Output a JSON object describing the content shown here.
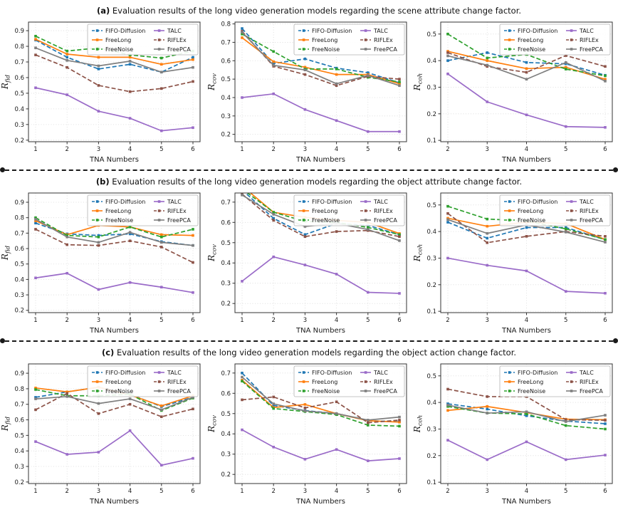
{
  "figure": {
    "xlabel": "TNA Numbers",
    "sections": [
      {
        "label": "(a)",
        "title": "Evaluation results of the long video generation models regarding the scene attribute change factor."
      },
      {
        "label": "(b)",
        "title": "Evaluation results of the long video generation models regarding the object attribute change factor."
      },
      {
        "label": "(c)",
        "title": "Evaluation results of the long video generation models regarding the object action change factor."
      }
    ],
    "legend_order": [
      "FIFO-Diffusion",
      "FreeLong",
      "FreeNoise",
      "TALC",
      "RIFLEx",
      "FreePCA"
    ],
    "series_styles": {
      "FIFO-Diffusion": {
        "color": "#1f77b4",
        "dashed": true
      },
      "FreeLong": {
        "color": "#ff7f0e",
        "dashed": false
      },
      "FreeNoise": {
        "color": "#2ca02c",
        "dashed": true
      },
      "TALC": {
        "color": "#9a6bc8",
        "dashed": false
      },
      "RIFLEx": {
        "color": "#8c5247",
        "dashed": true
      },
      "FreePCA": {
        "color": "#7f7f7f",
        "dashed": false
      }
    }
  },
  "chart_data": [
    {
      "type": "line",
      "section": "a",
      "ylabel_main": "R",
      "ylabel_sub": "fid",
      "xlabel": "TNA Numbers",
      "x": [
        1,
        2,
        3,
        4,
        5,
        6
      ],
      "yticks": [
        0.2,
        0.3,
        0.4,
        0.5,
        0.6,
        0.7,
        0.8,
        0.9
      ],
      "ylim": [
        0.19,
        0.955
      ],
      "grid": true,
      "legend_position": "upper right",
      "series": [
        {
          "name": "FIFO-Diffusion",
          "values": [
            0.84,
            0.73,
            0.655,
            0.685,
            0.635,
            0.73
          ]
        },
        {
          "name": "FreeLong",
          "values": [
            0.845,
            0.75,
            0.73,
            0.73,
            0.685,
            0.715
          ]
        },
        {
          "name": "FreeNoise",
          "values": [
            0.865,
            0.77,
            0.79,
            0.745,
            0.725,
            0.77
          ]
        },
        {
          "name": "TALC",
          "values": [
            0.535,
            0.49,
            0.385,
            0.34,
            0.26,
            0.28
          ]
        },
        {
          "name": "RIFLEx",
          "values": [
            0.745,
            0.665,
            0.55,
            0.51,
            0.53,
            0.575
          ]
        },
        {
          "name": "FreePCA",
          "values": [
            0.79,
            0.71,
            0.675,
            0.705,
            0.635,
            0.665
          ]
        }
      ]
    },
    {
      "type": "line",
      "section": "a",
      "ylabel_main": "R",
      "ylabel_sub": "cov",
      "xlabel": "TNA Numbers",
      "x": [
        1,
        2,
        3,
        4,
        5,
        6
      ],
      "yticks": [
        0.2,
        0.3,
        0.4,
        0.5,
        0.6,
        0.7,
        0.8
      ],
      "ylim": [
        0.16,
        0.81
      ],
      "grid": true,
      "legend_position": "upper right",
      "series": [
        {
          "name": "FIFO-Diffusion",
          "values": [
            0.775,
            0.585,
            0.61,
            0.56,
            0.535,
            0.48
          ]
        },
        {
          "name": "FreeLong",
          "values": [
            0.725,
            0.595,
            0.565,
            0.525,
            0.525,
            0.475
          ]
        },
        {
          "name": "FreeNoise",
          "values": [
            0.745,
            0.65,
            0.555,
            0.555,
            0.51,
            0.485
          ]
        },
        {
          "name": "TALC",
          "values": [
            0.4,
            0.42,
            0.335,
            0.275,
            0.215,
            0.215
          ]
        },
        {
          "name": "RIFLEx",
          "values": [
            0.76,
            0.57,
            0.525,
            0.465,
            0.515,
            0.5
          ]
        },
        {
          "name": "FreePCA",
          "values": [
            0.755,
            0.575,
            0.55,
            0.475,
            0.52,
            0.465
          ]
        }
      ]
    },
    {
      "type": "line",
      "section": "a",
      "ylabel_main": "R",
      "ylabel_sub": "coh",
      "xlabel": "TNA Numbers",
      "x": [
        2,
        3,
        4,
        5,
        6
      ],
      "yticks": [
        0.1,
        0.2,
        0.3,
        0.4,
        0.5
      ],
      "ylim": [
        0.095,
        0.545
      ],
      "grid": true,
      "legend_position": "upper right",
      "series": [
        {
          "name": "FIFO-Diffusion",
          "values": [
            0.4,
            0.43,
            0.393,
            0.388,
            0.345
          ]
        },
        {
          "name": "FreeLong",
          "values": [
            0.435,
            0.4,
            0.37,
            0.375,
            0.33
          ]
        },
        {
          "name": "FreeNoise",
          "values": [
            0.5,
            0.41,
            0.423,
            0.368,
            0.343
          ]
        },
        {
          "name": "TALC",
          "values": [
            0.35,
            0.245,
            0.196,
            0.152,
            0.149
          ]
        },
        {
          "name": "RIFLEx",
          "values": [
            0.43,
            0.378,
            0.356,
            0.419,
            0.378
          ]
        },
        {
          "name": "FreePCA",
          "values": [
            0.418,
            0.383,
            0.33,
            0.393,
            0.323
          ]
        }
      ]
    },
    {
      "type": "line",
      "section": "b",
      "ylabel_main": "R",
      "ylabel_sub": "fid",
      "xlabel": "TNA Numbers",
      "x": [
        1,
        2,
        3,
        4,
        5,
        6
      ],
      "yticks": [
        0.2,
        0.3,
        0.4,
        0.5,
        0.6,
        0.7,
        0.8,
        0.9
      ],
      "ylim": [
        0.185,
        0.96
      ],
      "grid": true,
      "legend_position": "upper right",
      "series": [
        {
          "name": "FIFO-Diffusion",
          "values": [
            0.765,
            0.695,
            0.685,
            0.695,
            0.645,
            0.62
          ]
        },
        {
          "name": "FreeLong",
          "values": [
            0.78,
            0.69,
            0.75,
            0.74,
            0.69,
            0.685
          ]
        },
        {
          "name": "FreeNoise",
          "values": [
            0.8,
            0.685,
            0.675,
            0.74,
            0.675,
            0.725
          ]
        },
        {
          "name": "TALC",
          "values": [
            0.41,
            0.44,
            0.335,
            0.38,
            0.35,
            0.315
          ]
        },
        {
          "name": "RIFLEx",
          "values": [
            0.725,
            0.625,
            0.62,
            0.65,
            0.61,
            0.51
          ]
        },
        {
          "name": "FreePCA",
          "values": [
            0.79,
            0.675,
            0.64,
            0.705,
            0.64,
            0.62
          ]
        }
      ]
    },
    {
      "type": "line",
      "section": "b",
      "ylabel_main": "R",
      "ylabel_sub": "cov",
      "xlabel": "TNA Numbers",
      "x": [
        1,
        2,
        3,
        4,
        5,
        6
      ],
      "yticks": [
        0.2,
        0.3,
        0.4,
        0.5,
        0.6,
        0.7
      ],
      "ylim": [
        0.155,
        0.745
      ],
      "grid": true,
      "legend_position": "upper right",
      "series": [
        {
          "name": "FIFO-Diffusion",
          "values": [
            0.76,
            0.62,
            0.54,
            0.595,
            0.585,
            0.54
          ]
        },
        {
          "name": "FreeLong",
          "values": [
            0.78,
            0.65,
            0.625,
            0.61,
            0.6,
            0.545
          ]
        },
        {
          "name": "FreeNoise",
          "values": [
            0.765,
            0.65,
            0.605,
            0.6,
            0.575,
            0.54
          ]
        },
        {
          "name": "TALC",
          "values": [
            0.31,
            0.43,
            0.39,
            0.345,
            0.255,
            0.25
          ]
        },
        {
          "name": "RIFLEx",
          "values": [
            0.74,
            0.61,
            0.53,
            0.555,
            0.56,
            0.53
          ]
        },
        {
          "name": "FreePCA",
          "values": [
            0.735,
            0.64,
            0.58,
            0.595,
            0.565,
            0.51
          ]
        }
      ]
    },
    {
      "type": "line",
      "section": "b",
      "ylabel_main": "R",
      "ylabel_sub": "coh",
      "xlabel": "TNA Numbers",
      "x": [
        2,
        3,
        4,
        5,
        6
      ],
      "yticks": [
        0.1,
        0.2,
        0.3,
        0.4,
        0.5
      ],
      "ylim": [
        0.095,
        0.545
      ],
      "grid": true,
      "legend_position": "upper right",
      "series": [
        {
          "name": "FIFO-Diffusion",
          "values": [
            0.435,
            0.375,
            0.415,
            0.415,
            0.37
          ]
        },
        {
          "name": "FreeLong",
          "values": [
            0.45,
            0.42,
            0.435,
            0.43,
            0.37
          ]
        },
        {
          "name": "FreeNoise",
          "values": [
            0.495,
            0.447,
            0.44,
            0.41,
            0.37
          ]
        },
        {
          "name": "TALC",
          "values": [
            0.3,
            0.273,
            0.252,
            0.175,
            0.168
          ]
        },
        {
          "name": "RIFLEx",
          "values": [
            0.468,
            0.358,
            0.382,
            0.4,
            0.382
          ]
        },
        {
          "name": "FreePCA",
          "values": [
            0.445,
            0.393,
            0.425,
            0.398,
            0.36
          ]
        }
      ]
    },
    {
      "type": "line",
      "section": "c",
      "ylabel_main": "R",
      "ylabel_sub": "fid",
      "xlabel": "TNA Numbers",
      "x": [
        1,
        2,
        3,
        4,
        5,
        6
      ],
      "yticks": [
        0.2,
        0.3,
        0.4,
        0.5,
        0.6,
        0.7,
        0.8,
        0.9
      ],
      "ylim": [
        0.19,
        0.96
      ],
      "grid": true,
      "legend_position": "upper right",
      "series": [
        {
          "name": "FIFO-Diffusion",
          "values": [
            0.745,
            0.78,
            0.81,
            0.765,
            0.685,
            0.745
          ]
        },
        {
          "name": "FreeLong",
          "values": [
            0.805,
            0.78,
            0.81,
            0.76,
            0.69,
            0.755
          ]
        },
        {
          "name": "FreeNoise",
          "values": [
            0.795,
            0.755,
            0.755,
            0.765,
            0.66,
            0.74
          ]
        },
        {
          "name": "TALC",
          "values": [
            0.46,
            0.378,
            0.392,
            0.53,
            0.308,
            0.352
          ]
        },
        {
          "name": "RIFLEx",
          "values": [
            0.665,
            0.77,
            0.64,
            0.7,
            0.62,
            0.67
          ]
        },
        {
          "name": "FreePCA",
          "values": [
            0.735,
            0.75,
            0.705,
            0.735,
            0.665,
            0.745
          ]
        }
      ]
    },
    {
      "type": "line",
      "section": "c",
      "ylabel_main": "R",
      "ylabel_sub": "cov",
      "xlabel": "TNA Numbers",
      "x": [
        1,
        2,
        3,
        4,
        5,
        6
      ],
      "yticks": [
        0.2,
        0.3,
        0.4,
        0.5,
        0.6,
        0.7
      ],
      "ylim": [
        0.155,
        0.745
      ],
      "grid": true,
      "legend_position": "upper right",
      "series": [
        {
          "name": "FIFO-Diffusion",
          "values": [
            0.7,
            0.54,
            0.515,
            0.5,
            0.465,
            0.46
          ]
        },
        {
          "name": "FreeLong",
          "values": [
            0.665,
            0.53,
            0.545,
            0.5,
            0.465,
            0.458
          ]
        },
        {
          "name": "FreeNoise",
          "values": [
            0.66,
            0.525,
            0.51,
            0.495,
            0.443,
            0.438
          ]
        },
        {
          "name": "TALC",
          "values": [
            0.42,
            0.335,
            0.275,
            0.323,
            0.267,
            0.278
          ]
        },
        {
          "name": "RIFLEx",
          "values": [
            0.568,
            0.582,
            0.528,
            0.558,
            0.455,
            0.468
          ]
        },
        {
          "name": "FreePCA",
          "values": [
            0.68,
            0.548,
            0.513,
            0.5,
            0.468,
            0.483
          ]
        }
      ]
    },
    {
      "type": "line",
      "section": "c",
      "ylabel_main": "R",
      "ylabel_sub": "coh",
      "xlabel": "TNA Numbers",
      "x": [
        2,
        3,
        4,
        5,
        6
      ],
      "yticks": [
        0.1,
        0.2,
        0.3,
        0.4,
        0.5
      ],
      "ylim": [
        0.095,
        0.545
      ],
      "grid": true,
      "legend_position": "upper right",
      "series": [
        {
          "name": "FIFO-Diffusion",
          "values": [
            0.395,
            0.375,
            0.35,
            0.33,
            0.32
          ]
        },
        {
          "name": "FreeLong",
          "values": [
            0.37,
            0.385,
            0.362,
            0.337,
            0.335
          ]
        },
        {
          "name": "FreeNoise",
          "values": [
            0.385,
            0.36,
            0.357,
            0.313,
            0.3
          ]
        },
        {
          "name": "TALC",
          "values": [
            0.258,
            0.185,
            0.252,
            0.185,
            0.202
          ]
        },
        {
          "name": "RIFLEx",
          "values": [
            0.45,
            0.422,
            0.422,
            0.335,
            0.333
          ]
        },
        {
          "name": "FreePCA",
          "values": [
            0.39,
            0.36,
            0.365,
            0.328,
            0.352
          ]
        }
      ]
    }
  ]
}
